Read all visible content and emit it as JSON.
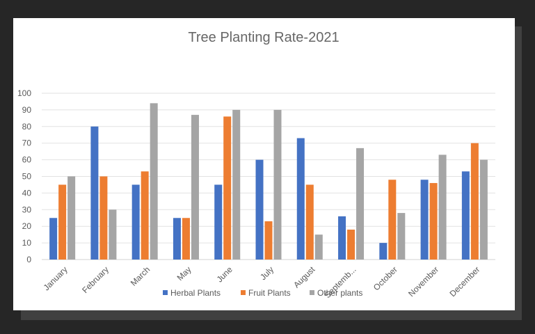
{
  "chart_data": {
    "type": "bar",
    "title": "Tree Planting Rate-2021",
    "xlabel": "",
    "ylabel": "",
    "ylim": [
      0,
      100
    ],
    "yticks": [
      0,
      10,
      20,
      30,
      40,
      50,
      60,
      70,
      80,
      90,
      100
    ],
    "grid": true,
    "legend": "bottom",
    "categories": [
      "January",
      "February",
      "March",
      "May",
      "June",
      "July",
      "August",
      "Septemb...",
      "October",
      "November",
      "December"
    ],
    "series": [
      {
        "name": "Herbal Plants",
        "color": "#4472C4",
        "values": [
          25,
          80,
          45,
          25,
          45,
          60,
          73,
          26,
          10,
          48,
          53
        ]
      },
      {
        "name": "Fruit Plants",
        "color": "#ED7D31",
        "values": [
          45,
          50,
          53,
          25,
          86,
          23,
          45,
          18,
          48,
          46,
          70
        ]
      },
      {
        "name": "Other plants",
        "color": "#A5A5A5",
        "values": [
          50,
          30,
          94,
          87,
          90,
          90,
          15,
          67,
          28,
          63,
          60
        ]
      }
    ]
  }
}
